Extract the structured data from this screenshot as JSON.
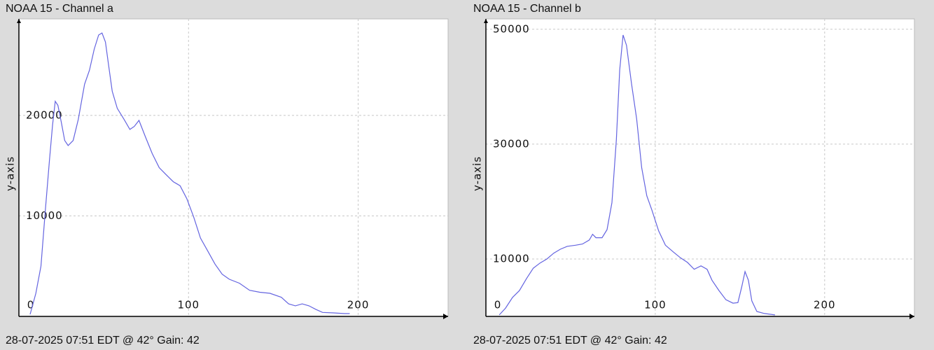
{
  "chart_data": [
    {
      "type": "line",
      "title": "NOAA 15 - Channel a",
      "y_label": "y-axis",
      "footer": "28-07-2025 07:51 EDT @ 42° Gain: 42",
      "color": "#6464e0",
      "grid": true,
      "xlim": [
        0,
        253
      ],
      "xticks": [
        0,
        100,
        200
      ],
      "ylim": [
        0,
        29600
      ],
      "yticks": [
        10000,
        20000
      ],
      "x": [
        6.6,
        10,
        13,
        15.6,
        18,
        19.8,
        21.4,
        23,
        25,
        27,
        29,
        32,
        35,
        38.7,
        41.6,
        44.4,
        47,
        49,
        51,
        52.7,
        55,
        58,
        62,
        65.4,
        68,
        70.8,
        74.5,
        78.6,
        82.7,
        86.8,
        91,
        95,
        99,
        103,
        107,
        111.5,
        115.6,
        119.8,
        124,
        130,
        136,
        142,
        148,
        154.7,
        159,
        163,
        167,
        171,
        175,
        179,
        185.6,
        192,
        195
      ],
      "values": [
        200,
        2300,
        5000,
        10600,
        15500,
        19000,
        21400,
        21000,
        19300,
        17500,
        17000,
        17500,
        19600,
        23100,
        24500,
        26600,
        28000,
        28200,
        27300,
        25200,
        22400,
        20700,
        19600,
        18600,
        18900,
        19500,
        17900,
        16200,
        14800,
        14100,
        13400,
        13000,
        11700,
        9900,
        7800,
        6450,
        5200,
        4200,
        3700,
        3300,
        2600,
        2400,
        2300,
        1900,
        1250,
        1050,
        1250,
        1050,
        700,
        400,
        350,
        280,
        280
      ]
    },
    {
      "type": "line",
      "title": "NOAA 15 - Channel b",
      "y_label": "y-axis",
      "footer": "28-07-2025 07:51 EDT @ 42° Gain: 42",
      "color": "#6464e0",
      "grid": true,
      "xlim": [
        0,
        253
      ],
      "xticks": [
        0,
        100,
        200
      ],
      "ylim": [
        0,
        51800
      ],
      "yticks": [
        10000,
        30000,
        50000
      ],
      "x": [
        7.9,
        11.6,
        15.7,
        19.8,
        24,
        28,
        32,
        36,
        40,
        44,
        48,
        52.9,
        57,
        61,
        63,
        65,
        68.6,
        71.5,
        74.4,
        77,
        79,
        81,
        83,
        86,
        89,
        92,
        95,
        98,
        102,
        106,
        110.7,
        114.9,
        119,
        123,
        127,
        130.6,
        133.5,
        137.6,
        141.7,
        145.9,
        148.8,
        151,
        153,
        155,
        157,
        160,
        164.5,
        170.7
      ],
      "values": [
        250,
        1450,
        3300,
        4500,
        6600,
        8400,
        9300,
        10000,
        11000,
        11700,
        12200,
        12400,
        12600,
        13300,
        14300,
        13700,
        13700,
        15100,
        19800,
        30700,
        42900,
        49000,
        47200,
        40500,
        34400,
        25900,
        21000,
        18500,
        14900,
        12400,
        11200,
        10200,
        9400,
        8200,
        8800,
        8200,
        6300,
        4500,
        2900,
        2300,
        2400,
        5100,
        7800,
        6300,
        2700,
        850,
        500,
        250
      ]
    }
  ]
}
